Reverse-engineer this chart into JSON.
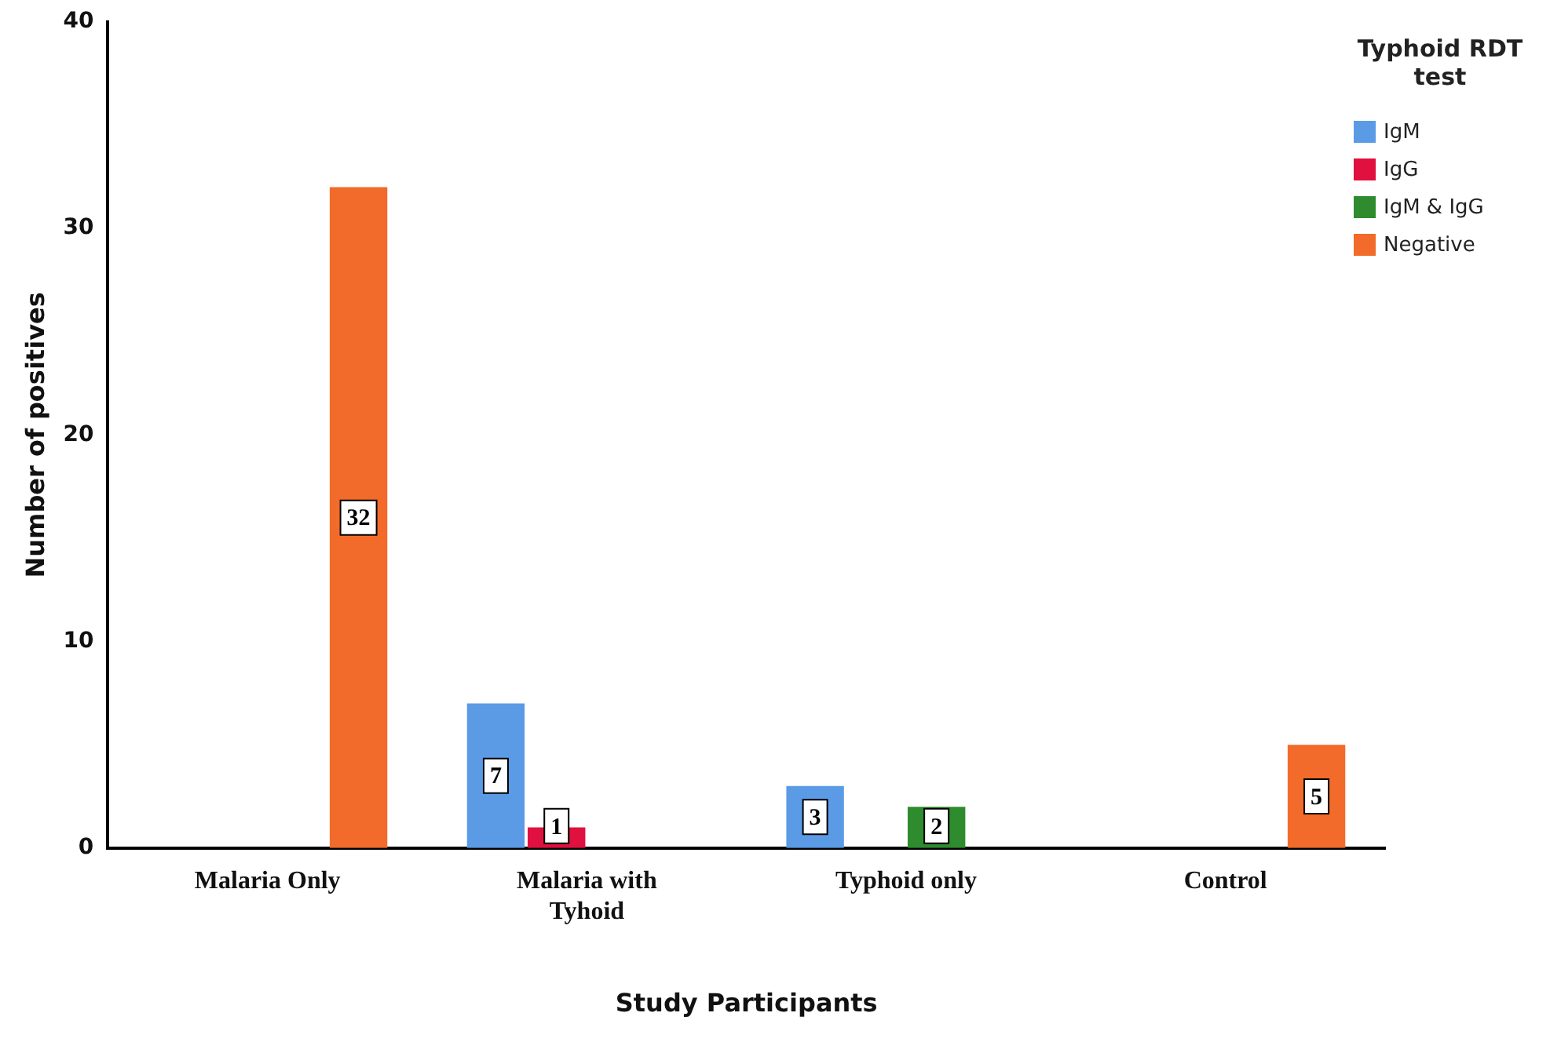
{
  "chart_data": {
    "type": "bar",
    "xlabel": "Study Participants",
    "ylabel": "Number of positives",
    "legend_title": "Typhoid RDT test",
    "legend": "top right",
    "grid": false,
    "categories": [
      "Malaria Only",
      "Malaria with Tyhoid",
      "Typhoid only",
      "Control"
    ],
    "ylim": [
      0,
      40
    ],
    "yticks": [
      0,
      10,
      20,
      30,
      40
    ],
    "series": [
      {
        "name": "IgM",
        "color": "#5b9be6",
        "values": [
          0,
          7,
          3,
          0
        ],
        "value_labels": [
          null,
          "7",
          "3",
          null
        ]
      },
      {
        "name": "IgG",
        "color": "#e0103f",
        "values": [
          0,
          1,
          0,
          0
        ],
        "value_labels": [
          null,
          "1",
          null,
          null
        ]
      },
      {
        "name": "IgM & IgG",
        "color": "#2e8b2e",
        "values": [
          0,
          0,
          2,
          0
        ],
        "value_labels": [
          null,
          null,
          "2",
          null
        ]
      },
      {
        "name": "Negative",
        "color": "#f26b2a",
        "values": [
          32,
          0,
          0,
          5
        ],
        "value_labels": [
          "32",
          null,
          null,
          "5"
        ]
      }
    ]
  }
}
